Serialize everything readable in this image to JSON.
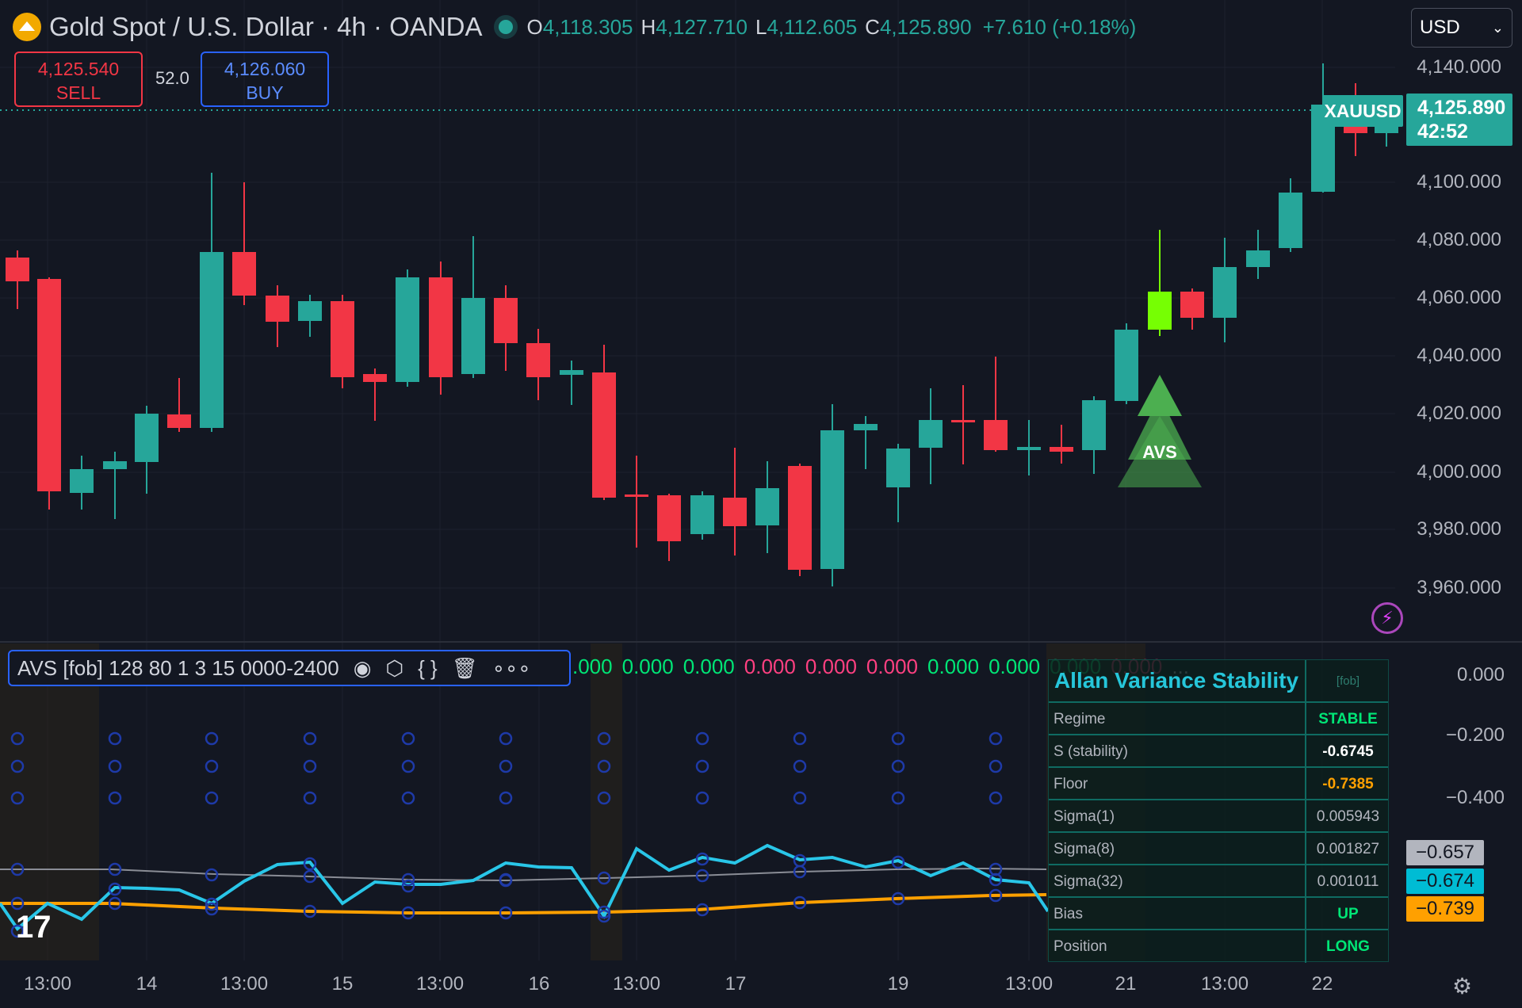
{
  "header": {
    "symbol_title": "Gold Spot / U.S. Dollar · 4h · OANDA",
    "ohlc": [
      {
        "k": "O",
        "v": "4,118.305"
      },
      {
        "k": "H",
        "v": "4,127.710"
      },
      {
        "k": "L",
        "v": "4,112.605"
      },
      {
        "k": "C",
        "v": "4,125.890"
      }
    ],
    "change": "+7.610 (+0.18%)",
    "currency": "USD"
  },
  "trade": {
    "sell_price": "4,125.540",
    "sell_label": "SELL",
    "spread": "52.0",
    "buy_price": "4,126.060",
    "buy_label": "BUY"
  },
  "price_axis": {
    "labels": [
      "4,140.000",
      "4,100.000",
      "4,080.000",
      "4,060.000",
      "4,040.000",
      "4,020.000",
      "4,000.000",
      "3,980.000",
      "3,960.000"
    ],
    "symbol_tag": "XAUUSD",
    "last_price": "4,125.890",
    "countdown": "42:52"
  },
  "signal": {
    "label": "AVS"
  },
  "indicator": {
    "legend": "AVS [fob] 128 80 1 3 15 0000-2400",
    "values": [
      {
        "t": ".000",
        "c": "g"
      },
      {
        "t": "0.000",
        "c": "g"
      },
      {
        "t": "0.000",
        "c": "g"
      },
      {
        "t": "0.000",
        "c": "p"
      },
      {
        "t": "0.000",
        "c": "p"
      },
      {
        "t": "0.000",
        "c": "p"
      },
      {
        "t": "0.000",
        "c": "g"
      },
      {
        "t": "0.000",
        "c": "g"
      },
      {
        "t": "0.000",
        "c": "g"
      },
      {
        "t": "0.000",
        "c": "p"
      },
      {
        "t": "...",
        "c": "w"
      }
    ],
    "axis_labels": [
      "0.000",
      "−0.200",
      "−0.400"
    ],
    "tags": [
      {
        "text": "−0.657",
        "bg": "#b2b5be",
        "fg": "#131722"
      },
      {
        "text": "−0.674",
        "bg": "#00bcd4",
        "fg": "#131722"
      },
      {
        "text": "−0.739",
        "bg": "#ffa000",
        "fg": "#131722"
      }
    ]
  },
  "panel": {
    "title": "Allan Variance Stability",
    "tag": "[fob]",
    "rows": [
      {
        "label": "Regime",
        "value": "STABLE",
        "color": "#00e676"
      },
      {
        "label": "S (stability)",
        "value": "-0.6745",
        "color": "#ffffff"
      },
      {
        "label": "Floor",
        "value": "-0.7385",
        "color": "#ffa000"
      },
      {
        "label": "Sigma(1)",
        "value": "0.005943",
        "color": "#b2b5be"
      },
      {
        "label": "Sigma(8)",
        "value": "0.001827",
        "color": "#b2b5be"
      },
      {
        "label": "Sigma(32)",
        "value": "0.001011",
        "color": "#b2b5be"
      },
      {
        "label": "Bias",
        "value": "UP",
        "color": "#00e676"
      },
      {
        "label": "Position",
        "value": "LONG",
        "color": "#00e676"
      }
    ]
  },
  "time_axis": [
    "13:00",
    "14",
    "13:00",
    "15",
    "13:00",
    "16",
    "13:00",
    "17",
    "19",
    "13:00",
    "21",
    "13:00",
    "22"
  ],
  "colors": {
    "up": "#26a69a",
    "down": "#f23645",
    "signal": "#76ff03",
    "bg": "#131722"
  }
}
